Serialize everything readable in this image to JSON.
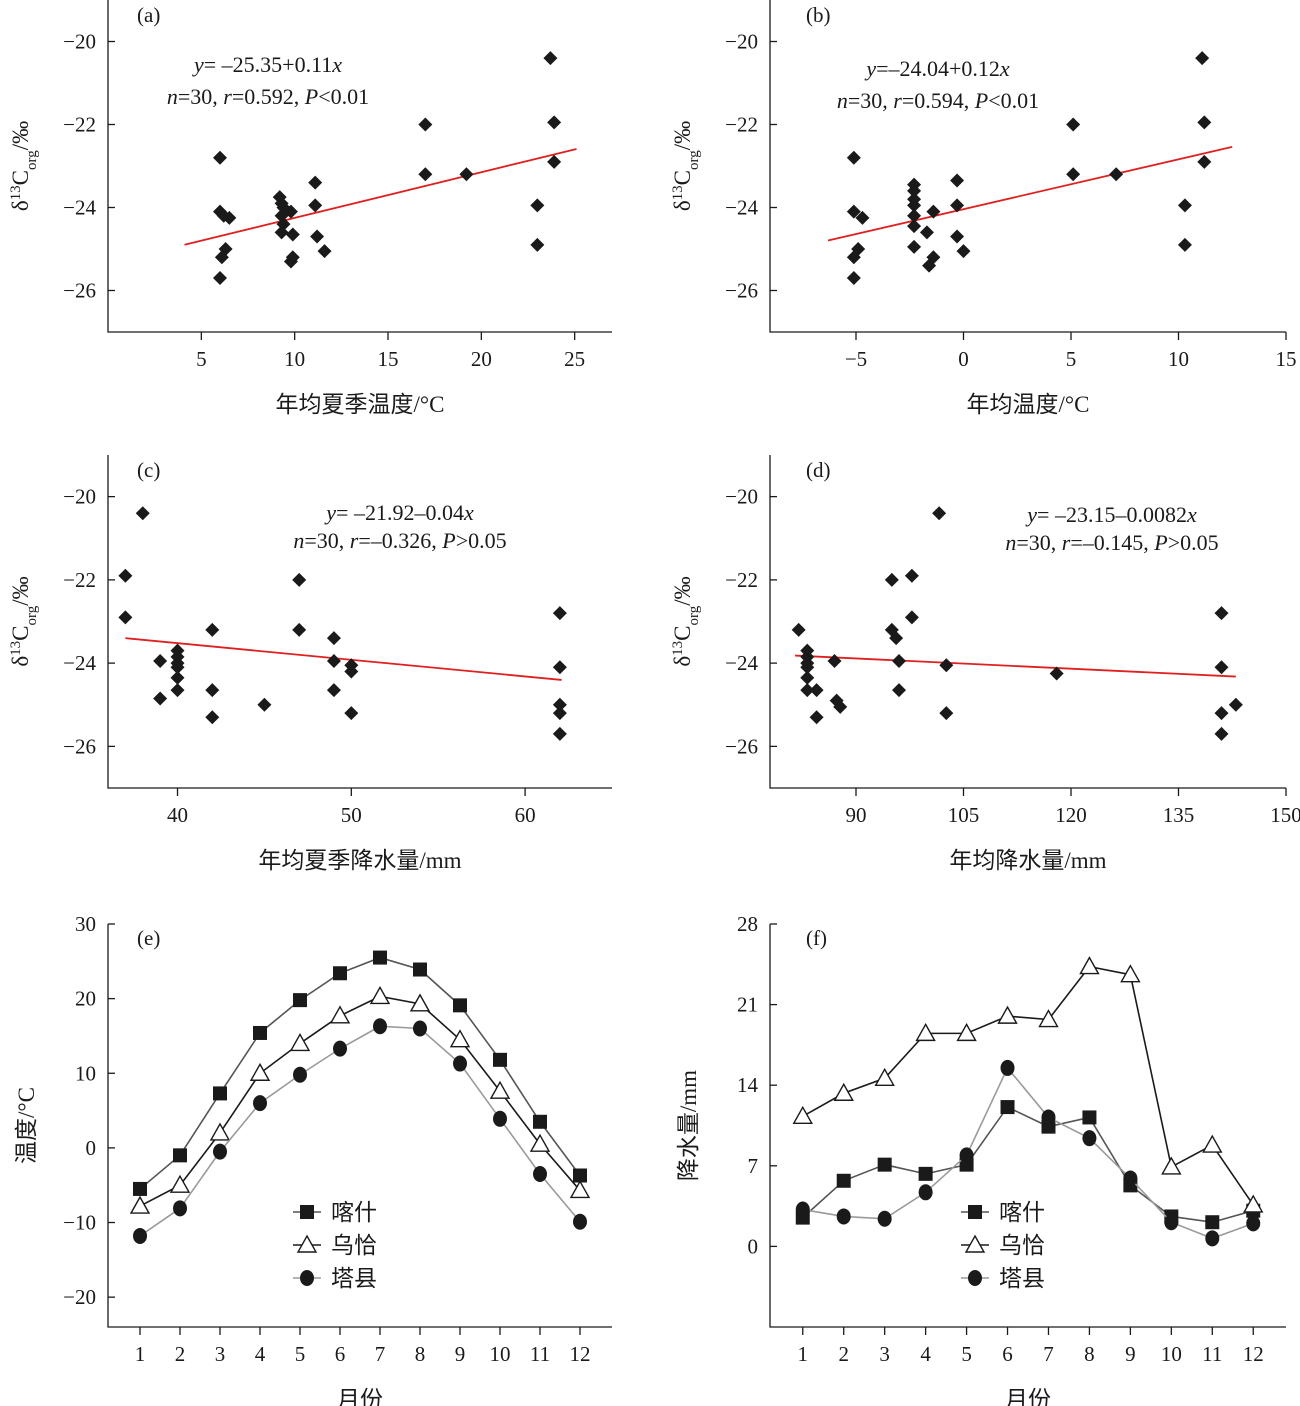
{
  "figure": {
    "colors": {
      "axis": "#1a1a1a",
      "marker": "#1a1a1a",
      "fit_line": "#e02020",
      "gray_line": "#9a9a9a",
      "dark_line": "#555555"
    }
  },
  "chart_data": [
    {
      "type": "scatter",
      "panel": "(a)",
      "xlabel": "年均夏季温度/°C",
      "ylabel": "δ13Corg/‰",
      "xlim": [
        0,
        27
      ],
      "ylim": [
        -27,
        -19
      ],
      "xticks": [
        5,
        10,
        15,
        20,
        25
      ],
      "yticks": [
        -26,
        -24,
        -22,
        -20
      ],
      "marker": "diamond",
      "annotation": [
        "y= –25.35+0.11x",
        "n=30, r=0.592, P<0.01"
      ],
      "fit": {
        "intercept": -25.35,
        "slope": 0.11,
        "x_range": [
          4.1,
          25.1
        ]
      },
      "points": [
        [
          6.0,
          -22.8
        ],
        [
          6.0,
          -24.1
        ],
        [
          6.2,
          -24.2
        ],
        [
          6.5,
          -24.25
        ],
        [
          6.1,
          -25.2
        ],
        [
          6.3,
          -25.0
        ],
        [
          6.0,
          -25.7
        ],
        [
          9.2,
          -23.75
        ],
        [
          9.3,
          -23.9
        ],
        [
          9.4,
          -24.0
        ],
        [
          9.3,
          -24.2
        ],
        [
          9.4,
          -24.4
        ],
        [
          9.3,
          -24.6
        ],
        [
          9.9,
          -24.65
        ],
        [
          9.8,
          -24.1
        ],
        [
          9.9,
          -25.2
        ],
        [
          9.8,
          -25.3
        ],
        [
          11.1,
          -23.4
        ],
        [
          11.1,
          -23.95
        ],
        [
          11.2,
          -24.7
        ],
        [
          11.6,
          -25.05
        ],
        [
          17.0,
          -22.0
        ],
        [
          17.0,
          -23.2
        ],
        [
          19.2,
          -23.2
        ],
        [
          23.0,
          -23.95
        ],
        [
          23.0,
          -24.9
        ],
        [
          23.7,
          -20.4
        ],
        [
          23.9,
          -21.95
        ],
        [
          23.9,
          -22.9
        ]
      ]
    },
    {
      "type": "scatter",
      "panel": "(b)",
      "xlabel": "年均温度/°C",
      "ylabel": "δ13Corg/‰",
      "xlim": [
        -9,
        15
      ],
      "ylim": [
        -27,
        -19
      ],
      "xticks": [
        -5,
        0,
        5,
        10,
        15
      ],
      "yticks": [
        -26,
        -24,
        -22,
        -20
      ],
      "marker": "diamond",
      "annotation": [
        "y=–24.04+0.12x",
        "n=30, r=0.594, P<0.01"
      ],
      "fit": {
        "intercept": -24.04,
        "slope": 0.12,
        "x_range": [
          -6.3,
          12.5
        ]
      },
      "points": [
        [
          -5.1,
          -22.8
        ],
        [
          -5.1,
          -24.1
        ],
        [
          -4.7,
          -24.25
        ],
        [
          -5.1,
          -25.2
        ],
        [
          -4.9,
          -25.0
        ],
        [
          -5.1,
          -25.7
        ],
        [
          -2.3,
          -23.45
        ],
        [
          -2.3,
          -23.6
        ],
        [
          -2.3,
          -23.8
        ],
        [
          -2.3,
          -23.95
        ],
        [
          -2.3,
          -24.2
        ],
        [
          -2.3,
          -24.45
        ],
        [
          -2.3,
          -24.95
        ],
        [
          -1.7,
          -24.6
        ],
        [
          -1.6,
          -25.4
        ],
        [
          -1.4,
          -24.1
        ],
        [
          -1.4,
          -25.2
        ],
        [
          -0.3,
          -23.35
        ],
        [
          -0.3,
          -23.95
        ],
        [
          -0.3,
          -24.7
        ],
        [
          0.0,
          -25.05
        ],
        [
          5.1,
          -22.0
        ],
        [
          5.1,
          -23.2
        ],
        [
          7.1,
          -23.2
        ],
        [
          10.3,
          -23.95
        ],
        [
          10.3,
          -24.9
        ],
        [
          11.1,
          -20.4
        ],
        [
          11.2,
          -21.95
        ],
        [
          11.2,
          -22.9
        ]
      ]
    },
    {
      "type": "scatter",
      "panel": "(c)",
      "xlabel": "年均夏季降水量/mm",
      "ylabel": "δ13Corg/‰",
      "xlim": [
        36,
        65
      ],
      "ylim": [
        -27,
        -19
      ],
      "xticks": [
        40,
        50,
        60
      ],
      "yticks": [
        -26,
        -24,
        -22,
        -20
      ],
      "marker": "diamond",
      "annotation": [
        "y= –21.92–0.04x",
        "n=30, r=–0.326, P>0.05"
      ],
      "fit": {
        "intercept": -21.92,
        "slope": -0.04,
        "x_range": [
          37,
          62.1
        ]
      },
      "points": [
        [
          37.0,
          -21.9
        ],
        [
          37.0,
          -22.9
        ],
        [
          38.0,
          -20.4
        ],
        [
          39.0,
          -23.95
        ],
        [
          39.0,
          -24.85
        ],
        [
          40.0,
          -23.7
        ],
        [
          40.0,
          -23.85
        ],
        [
          40.0,
          -24.0
        ],
        [
          40.0,
          -24.1
        ],
        [
          40.0,
          -24.35
        ],
        [
          40.0,
          -24.65
        ],
        [
          42.0,
          -23.2
        ],
        [
          42.0,
          -24.65
        ],
        [
          42.0,
          -25.3
        ],
        [
          45.0,
          -25.0
        ],
        [
          47.0,
          -22.0
        ],
        [
          47.0,
          -23.2
        ],
        [
          49.0,
          -23.4
        ],
        [
          49.0,
          -23.95
        ],
        [
          49.0,
          -24.65
        ],
        [
          50.0,
          -24.05
        ],
        [
          50.0,
          -24.2
        ],
        [
          50.0,
          -25.2
        ],
        [
          62.0,
          -22.8
        ],
        [
          62.0,
          -24.1
        ],
        [
          62.0,
          -25.0
        ],
        [
          62.0,
          -25.2
        ],
        [
          62.0,
          -25.7
        ]
      ]
    },
    {
      "type": "scatter",
      "panel": "(d)",
      "xlabel": "年均降水量/mm",
      "ylabel": "δ13Corg/‰",
      "xlim": [
        78,
        150
      ],
      "ylim": [
        -27,
        -19
      ],
      "xticks": [
        90,
        105,
        120,
        135,
        150
      ],
      "yticks": [
        -26,
        -24,
        -22,
        -20
      ],
      "marker": "diamond",
      "annotation": [
        "y= –23.15–0.0082x",
        "n=30, r=–0.145, P>0.05"
      ],
      "fit": {
        "intercept": -23.15,
        "slope": -0.0082,
        "x_range": [
          81.5,
          143
        ]
      },
      "points": [
        [
          82.0,
          -23.2
        ],
        [
          83.2,
          -23.7
        ],
        [
          83.2,
          -23.85
        ],
        [
          83.2,
          -24.0
        ],
        [
          83.2,
          -24.1
        ],
        [
          83.2,
          -24.35
        ],
        [
          83.2,
          -24.65
        ],
        [
          84.5,
          -24.65
        ],
        [
          84.5,
          -25.3
        ],
        [
          87.0,
          -23.95
        ],
        [
          87.3,
          -24.9
        ],
        [
          87.8,
          -25.05
        ],
        [
          95.0,
          -22.0
        ],
        [
          95.0,
          -23.2
        ],
        [
          95.6,
          -23.4
        ],
        [
          96.0,
          -23.95
        ],
        [
          96.0,
          -24.65
        ],
        [
          97.8,
          -21.9
        ],
        [
          97.8,
          -22.9
        ],
        [
          101.6,
          -20.4
        ],
        [
          102.6,
          -24.05
        ],
        [
          102.6,
          -25.2
        ],
        [
          118.0,
          -24.25
        ],
        [
          141.0,
          -22.8
        ],
        [
          141.0,
          -24.1
        ],
        [
          141.0,
          -25.2
        ],
        [
          141.0,
          -25.7
        ],
        [
          143.0,
          -25.0
        ]
      ]
    },
    {
      "type": "line",
      "panel": "(e)",
      "xlabel": "月份",
      "ylabel": "温度/°C",
      "xlim": [
        0.2,
        12.8
      ],
      "ylim": [
        -24,
        30
      ],
      "x": [
        1,
        2,
        3,
        4,
        5,
        6,
        7,
        8,
        9,
        10,
        11,
        12
      ],
      "yticks": [
        -20,
        -10,
        0,
        10,
        20,
        30
      ],
      "legend_position": "bottom-center",
      "series": [
        {
          "name": "喀什",
          "marker": "square-filled",
          "color": "#555555",
          "values": [
            -5.5,
            -1.0,
            7.3,
            15.4,
            19.8,
            23.4,
            25.5,
            23.9,
            19.1,
            11.8,
            3.5,
            -3.7
          ]
        },
        {
          "name": "乌恰",
          "marker": "triangle-open",
          "color": "#1a1a1a",
          "values": [
            -7.8,
            -5.0,
            2.0,
            10.0,
            14.0,
            17.7,
            20.3,
            19.3,
            14.5,
            7.6,
            0.5,
            -5.7
          ]
        },
        {
          "name": "塔县",
          "marker": "circle-filled",
          "color": "#9a9a9a",
          "values": [
            -11.8,
            -8.1,
            -0.5,
            6.0,
            9.8,
            13.3,
            16.3,
            16.0,
            11.3,
            3.9,
            -3.5,
            -9.9
          ]
        }
      ]
    },
    {
      "type": "line",
      "panel": "(f)",
      "xlabel": "月份",
      "ylabel": "降水量/mm",
      "xlim": [
        0.2,
        12.8
      ],
      "ylim": [
        -7,
        28
      ],
      "x": [
        1,
        2,
        3,
        4,
        5,
        6,
        7,
        8,
        9,
        10,
        11,
        12
      ],
      "yticks": [
        0,
        7,
        14,
        21,
        28
      ],
      "legend_position": "bottom-center",
      "series": [
        {
          "name": "喀什",
          "marker": "square-filled",
          "color": "#555555",
          "values": [
            2.5,
            5.7,
            7.1,
            6.3,
            7.1,
            12.1,
            10.4,
            11.2,
            5.3,
            2.6,
            2.1,
            3.1
          ]
        },
        {
          "name": "乌恰",
          "marker": "triangle-open",
          "color": "#1a1a1a",
          "values": [
            11.3,
            13.3,
            14.6,
            18.5,
            18.5,
            20.0,
            19.7,
            24.3,
            23.6,
            6.9,
            8.8,
            3.6
          ]
        },
        {
          "name": "塔县",
          "marker": "circle-filled",
          "color": "#9a9a9a",
          "values": [
            3.2,
            2.6,
            2.4,
            4.7,
            7.9,
            15.5,
            11.2,
            9.4,
            5.9,
            2.1,
            0.7,
            2.0
          ]
        }
      ]
    }
  ]
}
